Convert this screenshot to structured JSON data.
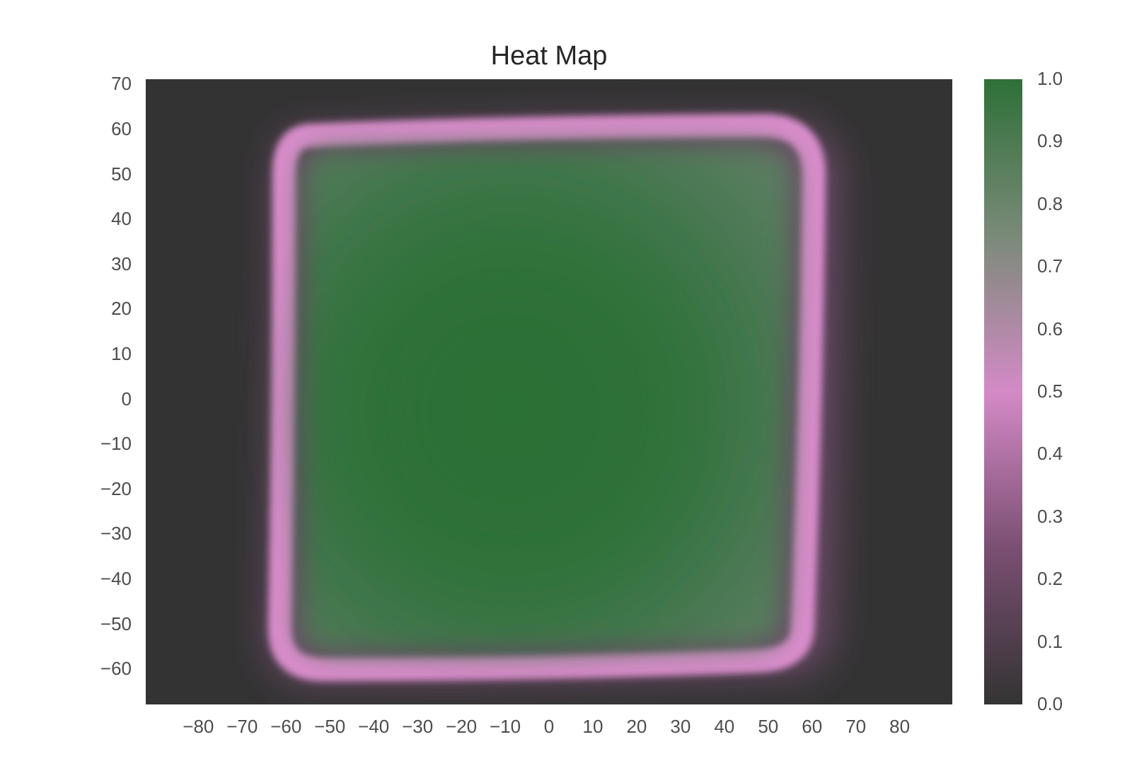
{
  "chart_data": {
    "type": "heatmap",
    "title": "Heat Map",
    "xlabel": "",
    "ylabel": "",
    "xlim": [
      -92,
      92
    ],
    "ylim": [
      -68,
      71
    ],
    "x_ticks": [
      -80,
      -70,
      -60,
      -50,
      -40,
      -30,
      -20,
      -10,
      0,
      10,
      20,
      30,
      40,
      50,
      60,
      70,
      80
    ],
    "x_tick_labels": [
      "−80",
      "−70",
      "−60",
      "−50",
      "−40",
      "−30",
      "−20",
      "−10",
      "0",
      "10",
      "20",
      "30",
      "40",
      "50",
      "60",
      "70",
      "80"
    ],
    "y_ticks": [
      70,
      60,
      50,
      40,
      30,
      20,
      10,
      0,
      -10,
      -20,
      -30,
      -40,
      -50,
      -60
    ],
    "y_tick_labels": [
      "70",
      "60",
      "50",
      "40",
      "30",
      "20",
      "10",
      "0",
      "−10",
      "−20",
      "−30",
      "−40",
      "−50",
      "−60"
    ],
    "colorbar": {
      "range": [
        0.0,
        1.0
      ],
      "ticks": [
        0.0,
        0.1,
        0.2,
        0.3,
        0.4,
        0.5,
        0.6,
        0.7,
        0.8,
        0.9,
        1.0
      ],
      "tick_labels": [
        "0.0",
        "0.1",
        "0.2",
        "0.3",
        "0.4",
        "0.5",
        "0.6",
        "0.7",
        "0.8",
        "0.9",
        "1.0"
      ],
      "colors": [
        "#333333",
        "#7a4f72",
        "#d48ac6",
        "#7a8a78",
        "#2e7038"
      ]
    },
    "grid": false,
    "legend": "none"
  }
}
